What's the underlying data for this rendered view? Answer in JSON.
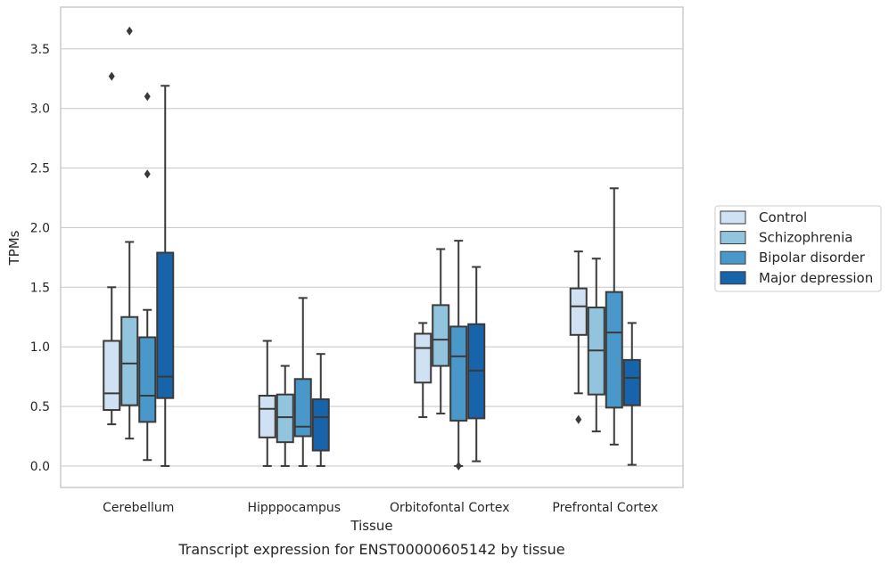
{
  "caption": "Transcript expression for ENST00000605142 by tissue",
  "colors": {
    "Control": "#cfe1f2",
    "Schizophrenia": "#93c4de",
    "Bipolar disorder": "#4a98c9",
    "Major depression": "#1764ab",
    "edge": "#3a3a3a",
    "grid": "#cccccc"
  },
  "chart_data": {
    "type": "box",
    "xlabel": "Tissue",
    "ylabel": "TPMs",
    "ylim": [
      -0.18,
      3.85
    ],
    "yticks": [
      0.0,
      0.5,
      1.0,
      1.5,
      2.0,
      2.5,
      3.0,
      3.5
    ],
    "ytick_labels": [
      "0.0",
      "0.5",
      "1.0",
      "1.5",
      "2.0",
      "2.5",
      "3.0",
      "3.5"
    ],
    "grid": "horizontal",
    "legend_position": "right",
    "categories": [
      "Cerebellum",
      "Hipppocampus",
      "Orbitofontal Cortex",
      "Prefrontal Cortex"
    ],
    "series": [
      {
        "name": "Control",
        "boxes": [
          {
            "whislo": 0.35,
            "q1": 0.47,
            "med": 0.61,
            "q3": 1.05,
            "whishi": 1.5,
            "fliers": [
              3.27
            ]
          },
          {
            "whislo": 0.0,
            "q1": 0.24,
            "med": 0.48,
            "q3": 0.59,
            "whishi": 1.05,
            "fliers": []
          },
          {
            "whislo": 0.41,
            "q1": 0.7,
            "med": 0.99,
            "q3": 1.11,
            "whishi": 1.2,
            "fliers": []
          },
          {
            "whislo": 0.61,
            "q1": 1.1,
            "med": 1.34,
            "q3": 1.49,
            "whishi": 1.8,
            "fliers": [
              0.39
            ]
          }
        ]
      },
      {
        "name": "Schizophrenia",
        "boxes": [
          {
            "whislo": 0.23,
            "q1": 0.51,
            "med": 0.86,
            "q3": 1.25,
            "whishi": 1.88,
            "fliers": [
              3.65
            ]
          },
          {
            "whislo": 0.0,
            "q1": 0.2,
            "med": 0.41,
            "q3": 0.6,
            "whishi": 0.84,
            "fliers": []
          },
          {
            "whislo": 0.44,
            "q1": 0.84,
            "med": 1.06,
            "q3": 1.35,
            "whishi": 1.82,
            "fliers": []
          },
          {
            "whislo": 0.29,
            "q1": 0.6,
            "med": 0.97,
            "q3": 1.33,
            "whishi": 1.74,
            "fliers": []
          }
        ]
      },
      {
        "name": "Bipolar disorder",
        "boxes": [
          {
            "whislo": 0.05,
            "q1": 0.37,
            "med": 0.59,
            "q3": 1.08,
            "whishi": 1.31,
            "fliers": [
              3.1,
              2.45
            ]
          },
          {
            "whislo": 0.0,
            "q1": 0.25,
            "med": 0.33,
            "q3": 0.73,
            "whishi": 1.41,
            "fliers": []
          },
          {
            "whislo": 0.0,
            "q1": 0.38,
            "med": 0.92,
            "q3": 1.17,
            "whishi": 1.89,
            "fliers": [
              0.0
            ]
          },
          {
            "whislo": 0.18,
            "q1": 0.49,
            "med": 1.12,
            "q3": 1.46,
            "whishi": 2.33,
            "fliers": []
          }
        ]
      },
      {
        "name": "Major depression",
        "boxes": [
          {
            "whislo": 0.0,
            "q1": 0.57,
            "med": 0.75,
            "q3": 1.79,
            "whishi": 3.19,
            "fliers": []
          },
          {
            "whislo": 0.0,
            "q1": 0.13,
            "med": 0.41,
            "q3": 0.56,
            "whishi": 0.94,
            "fliers": []
          },
          {
            "whislo": 0.04,
            "q1": 0.4,
            "med": 0.8,
            "q3": 1.19,
            "whishi": 1.67,
            "fliers": []
          },
          {
            "whislo": 0.01,
            "q1": 0.51,
            "med": 0.74,
            "q3": 0.89,
            "whishi": 1.2,
            "fliers": []
          }
        ]
      }
    ]
  }
}
